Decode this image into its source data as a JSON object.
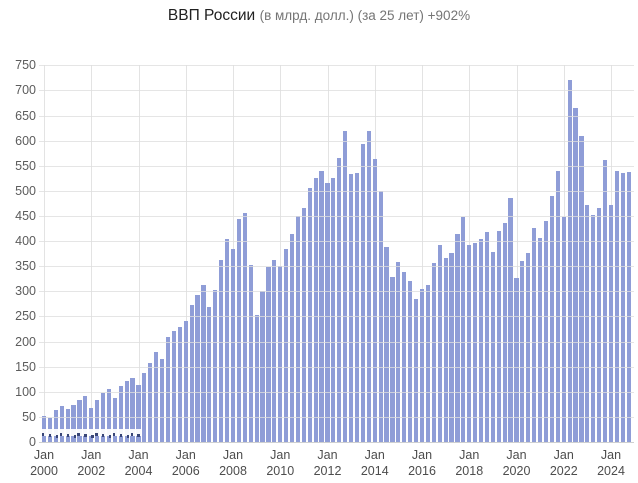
{
  "title": {
    "main": "ВВП России",
    "sub": "(в млрд. долл.) (за 25 лет) +902%"
  },
  "chart_data": {
    "type": "bar",
    "title": "ВВП России (в млрд. долл.) (за 25 лет) +902%",
    "unit": "млрд. долл.",
    "frequency": "quarterly",
    "x_start": "2000-Q1",
    "x_end": "2024-Q4",
    "xlabel": "",
    "ylabel": "",
    "ylim": [
      0,
      750
    ],
    "y_ticks": [
      0,
      50,
      100,
      150,
      200,
      250,
      300,
      350,
      400,
      450,
      500,
      550,
      600,
      650,
      700,
      750
    ],
    "grid": true,
    "legend": "none",
    "x_tick_labels": [
      {
        "month": "Jan",
        "year": "2000"
      },
      {
        "month": "Jan",
        "year": "2002"
      },
      {
        "month": "Jan",
        "year": "2004"
      },
      {
        "month": "Jan",
        "year": "2006"
      },
      {
        "month": "Jan",
        "year": "2008"
      },
      {
        "month": "Jan",
        "year": "2010"
      },
      {
        "month": "Jan",
        "year": "2012"
      },
      {
        "month": "Jan",
        "year": "2014"
      },
      {
        "month": "Jan",
        "year": "2016"
      },
      {
        "month": "Jan",
        "year": "2018"
      },
      {
        "month": "Jan",
        "year": "2020"
      },
      {
        "month": "Jan",
        "year": "2022"
      },
      {
        "month": "Jan",
        "year": "2024"
      }
    ],
    "values": [
      52,
      48,
      63,
      71,
      65,
      74,
      83,
      92,
      68,
      84,
      98,
      105,
      88,
      111,
      121,
      127,
      114,
      137,
      157,
      180,
      165,
      210,
      221,
      228,
      240,
      272,
      292,
      312,
      268,
      302,
      362,
      404,
      385,
      443,
      455,
      352,
      252,
      300,
      349,
      362,
      350,
      385,
      415,
      450,
      465,
      505,
      525,
      540,
      515,
      525,
      565,
      620,
      533,
      536,
      593,
      619,
      563,
      500,
      389,
      328,
      358,
      338,
      320,
      284,
      305,
      313,
      356,
      392,
      366,
      376,
      415,
      447,
      392,
      397,
      405,
      418,
      379,
      421,
      437,
      485,
      327,
      361,
      377,
      426,
      407,
      441,
      490,
      540,
      448,
      720,
      664,
      610,
      471,
      451,
      465,
      562,
      471,
      540,
      536,
      538
    ],
    "value_labels_shown_on_first_n_bars": 17
  },
  "colors": {
    "bar": "#8f9dd7",
    "grid": "#e3e3e3",
    "baseline": "#cfd0d0",
    "y_text": "#5c5c5c",
    "x_text": "#4d4d4d",
    "title_main": "#212121",
    "title_sub": "#757575",
    "annotation_speck": "#384577"
  }
}
